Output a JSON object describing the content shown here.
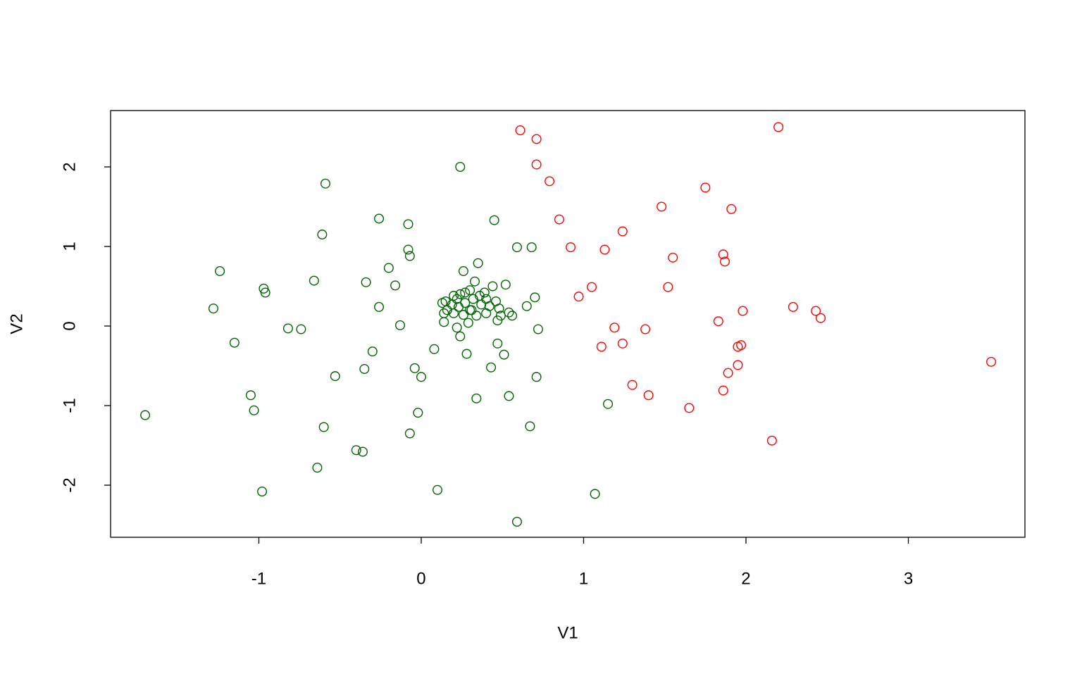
{
  "chart_data": {
    "type": "scatter",
    "x_label": "V1",
    "y_label": "V2",
    "xlim": [
      -1.913,
      3.718
    ],
    "ylim": [
      -2.655,
      2.708
    ],
    "xticks": [
      -1,
      0,
      1,
      2,
      3
    ],
    "yticks": [
      -2,
      -1,
      0,
      1,
      2
    ],
    "series": [
      {
        "color": "#ff0000",
        "x": [
          0.61,
          0.71,
          0.71,
          0.79,
          0.85,
          0.92,
          0.97,
          1.05,
          1.11,
          1.13,
          1.19,
          1.24,
          1.24,
          1.3,
          1.38,
          1.4,
          1.48,
          1.52,
          1.55,
          1.65,
          1.75,
          1.83,
          1.86,
          1.86,
          1.87,
          1.89,
          1.91,
          1.95,
          1.95,
          1.97,
          1.98,
          2.16,
          2.2,
          2.29,
          2.43,
          2.46,
          3.51
        ],
        "values": [
          2.46,
          2.35,
          2.03,
          1.82,
          1.34,
          0.99,
          0.37,
          0.49,
          -0.26,
          0.96,
          -0.02,
          -0.22,
          1.19,
          -0.74,
          -0.04,
          -0.87,
          1.5,
          0.49,
          0.86,
          -1.03,
          1.74,
          0.06,
          -0.81,
          0.9,
          0.81,
          -0.59,
          1.47,
          -0.26,
          -0.49,
          -0.24,
          0.19,
          -1.44,
          2.5,
          0.24,
          0.19,
          0.1,
          -0.45
        ]
      },
      {
        "color": "#006400",
        "x": [
          -1.7,
          -1.28,
          -1.24,
          -1.15,
          -1.05,
          -1.03,
          -0.98,
          -0.97,
          -0.96,
          -0.82,
          -0.74,
          -0.66,
          -0.64,
          -0.61,
          -0.6,
          -0.59,
          -0.53,
          -0.4,
          -0.36,
          -0.35,
          -0.34,
          -0.3,
          -0.26,
          -0.26,
          -0.2,
          -0.16,
          -0.13,
          -0.08,
          -0.08,
          -0.07,
          -0.07,
          -0.04,
          -0.02,
          0.0,
          0.08,
          0.1,
          0.14,
          0.24,
          0.24,
          0.26,
          0.28,
          0.34,
          0.35,
          0.43,
          0.45,
          0.47,
          0.51,
          0.52,
          0.54,
          0.59,
          0.59,
          0.65,
          0.67,
          0.68,
          0.7,
          0.71,
          0.72,
          1.07,
          1.15,
          0.13,
          0.15,
          0.16,
          0.19,
          0.2,
          0.22,
          0.22,
          0.23,
          0.24,
          0.26,
          0.27,
          0.29,
          0.3,
          0.3,
          0.32,
          0.33,
          0.34,
          0.36,
          0.37,
          0.39,
          0.4,
          0.42,
          0.44,
          0.46,
          0.47,
          0.48,
          0.49,
          0.54,
          0.56,
          0.14,
          0.27,
          0.2,
          0.31,
          0.4
        ],
        "values": [
          -1.12,
          0.22,
          0.69,
          -0.21,
          -0.87,
          -1.06,
          -2.08,
          0.47,
          0.42,
          -0.03,
          -0.04,
          0.57,
          -1.78,
          1.15,
          -1.27,
          1.79,
          -0.63,
          -1.56,
          -1.58,
          -0.54,
          0.55,
          -0.32,
          0.24,
          1.35,
          0.73,
          0.51,
          0.01,
          1.28,
          0.96,
          0.88,
          -1.35,
          -0.53,
          -1.09,
          -0.64,
          -0.29,
          -2.06,
          0.05,
          2.0,
          -0.13,
          0.69,
          -0.35,
          -0.91,
          0.79,
          -0.52,
          1.33,
          -0.22,
          -0.36,
          0.52,
          -0.88,
          -2.46,
          0.99,
          0.25,
          -1.26,
          0.99,
          0.36,
          -0.64,
          -0.04,
          -2.11,
          -0.98,
          0.29,
          0.31,
          0.2,
          0.27,
          0.16,
          0.34,
          -0.02,
          0.24,
          0.4,
          0.14,
          0.29,
          0.04,
          0.2,
          0.45,
          0.34,
          0.56,
          0.13,
          0.38,
          0.27,
          0.42,
          0.16,
          0.25,
          0.5,
          0.31,
          0.07,
          0.22,
          0.13,
          0.17,
          0.13,
          0.16,
          0.42,
          0.38,
          0.2,
          0.34
        ]
      }
    ]
  }
}
